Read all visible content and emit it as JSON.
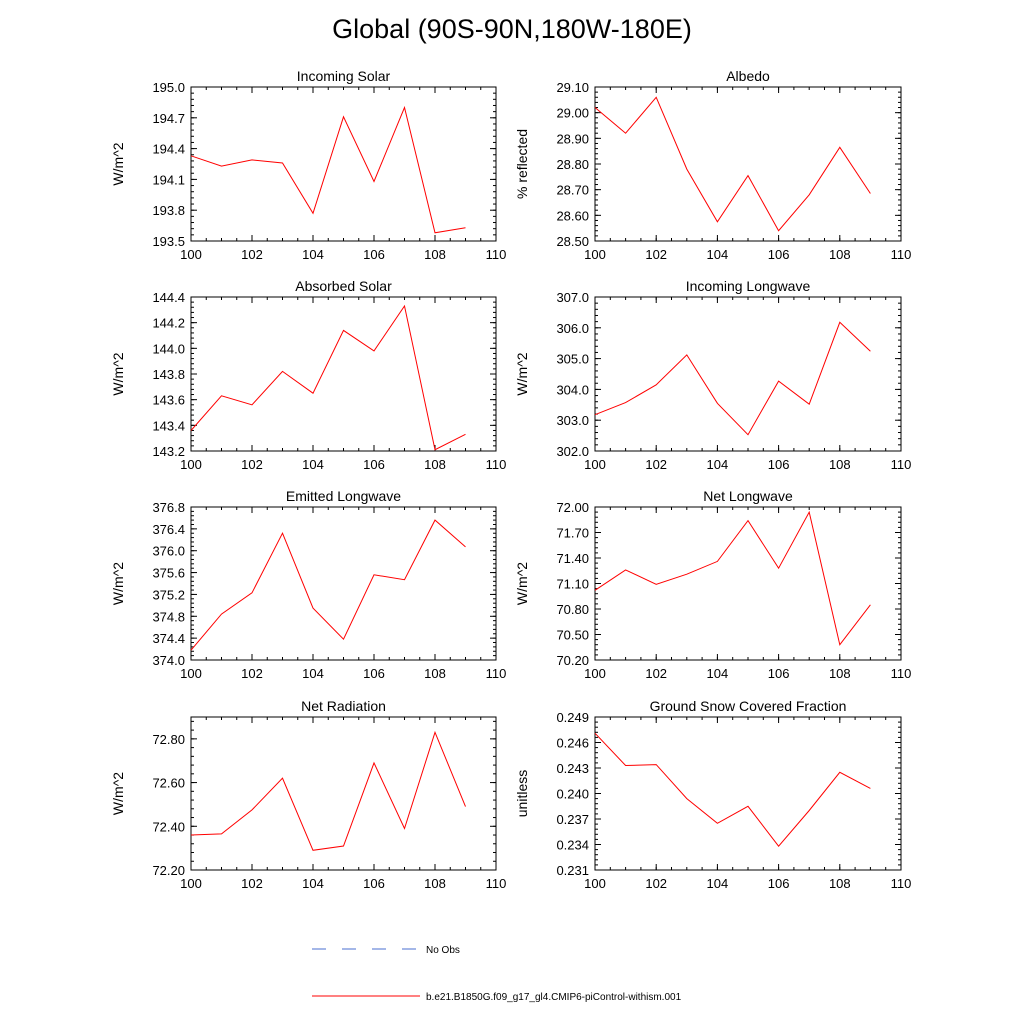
{
  "title": "Global (90S-90N,180W-180E)",
  "colors": {
    "model": "#ff0000",
    "obs": "#4a6fd0",
    "axis": "#000000"
  },
  "legend": {
    "obs_label": "No Obs",
    "model_label": "b.e21.B1850G.f09_g17_gl4.CMIP6-piControl-withism.001"
  },
  "chart_data": [
    {
      "type": "line",
      "title": "Incoming Solar",
      "ylabel": "W/m^2",
      "xlim": [
        100,
        110
      ],
      "xticks": [
        "100",
        "102",
        "104",
        "106",
        "108",
        "110"
      ],
      "ylim": [
        193.5,
        195.0
      ],
      "yticks": [
        "193.5",
        "193.8",
        "194.1",
        "194.4",
        "194.7",
        "195.0"
      ],
      "x": [
        100,
        101,
        102,
        103,
        104,
        105,
        106,
        107,
        108,
        109
      ],
      "series": [
        {
          "name": "b.e21.B1850G.f09_g17_gl4.CMIP6-piControl-withism.001",
          "values": [
            194.33,
            194.23,
            194.29,
            194.26,
            193.77,
            194.71,
            194.08,
            194.8,
            193.58,
            193.63
          ]
        }
      ]
    },
    {
      "type": "line",
      "title": "Albedo",
      "ylabel": "% reflected",
      "xlim": [
        100,
        110
      ],
      "xticks": [
        "100",
        "102",
        "104",
        "106",
        "108",
        "110"
      ],
      "ylim": [
        28.5,
        29.1
      ],
      "yticks": [
        "28.50",
        "28.60",
        "28.70",
        "28.80",
        "28.90",
        "29.00",
        "29.10"
      ],
      "x": [
        100,
        101,
        102,
        103,
        104,
        105,
        106,
        107,
        108,
        109
      ],
      "series": [
        {
          "name": "b.e21.B1850G.f09_g17_gl4.CMIP6-piControl-withism.001",
          "values": [
            29.02,
            28.92,
            29.06,
            28.78,
            28.575,
            28.755,
            28.54,
            28.68,
            28.865,
            28.685
          ]
        }
      ]
    },
    {
      "type": "line",
      "title": "Absorbed Solar",
      "ylabel": "W/m^2",
      "xlim": [
        100,
        110
      ],
      "xticks": [
        "100",
        "102",
        "104",
        "106",
        "108",
        "110"
      ],
      "ylim": [
        143.2,
        144.4
      ],
      "yticks": [
        "143.2",
        "143.4",
        "143.6",
        "143.8",
        "144.0",
        "144.2",
        "144.4"
      ],
      "x": [
        100,
        101,
        102,
        103,
        104,
        105,
        106,
        107,
        108,
        109
      ],
      "series": [
        {
          "name": "b.e21.B1850G.f09_g17_gl4.CMIP6-piControl-withism.001",
          "values": [
            143.36,
            143.63,
            143.56,
            143.82,
            143.65,
            144.14,
            143.98,
            144.33,
            143.21,
            143.33
          ]
        }
      ]
    },
    {
      "type": "line",
      "title": "Incoming Longwave",
      "ylabel": "W/m^2",
      "xlim": [
        100,
        110
      ],
      "xticks": [
        "100",
        "102",
        "104",
        "106",
        "108",
        "110"
      ],
      "ylim": [
        302.0,
        307.0
      ],
      "yticks": [
        "302.0",
        "303.0",
        "304.0",
        "305.0",
        "306.0",
        "307.0"
      ],
      "x": [
        100,
        101,
        102,
        103,
        104,
        105,
        106,
        107,
        108,
        109
      ],
      "series": [
        {
          "name": "b.e21.B1850G.f09_g17_gl4.CMIP6-piControl-withism.001",
          "values": [
            303.18,
            303.57,
            304.15,
            305.12,
            303.55,
            302.53,
            304.27,
            303.52,
            306.18,
            305.24
          ]
        }
      ]
    },
    {
      "type": "line",
      "title": "Emitted Longwave",
      "ylabel": "W/m^2",
      "xlim": [
        100,
        110
      ],
      "xticks": [
        "100",
        "102",
        "104",
        "106",
        "108",
        "110"
      ],
      "ylim": [
        374.0,
        376.8
      ],
      "yticks": [
        "374.0",
        "374.4",
        "374.8",
        "375.2",
        "375.6",
        "376.0",
        "376.4",
        "376.8"
      ],
      "x": [
        100,
        101,
        102,
        103,
        104,
        105,
        106,
        107,
        108,
        109
      ],
      "series": [
        {
          "name": "b.e21.B1850G.f09_g17_gl4.CMIP6-piControl-withism.001",
          "values": [
            374.18,
            374.84,
            375.23,
            376.32,
            374.95,
            374.38,
            375.56,
            375.47,
            376.56,
            376.07
          ]
        }
      ]
    },
    {
      "type": "line",
      "title": "Net Longwave",
      "ylabel": "W/m^2",
      "xlim": [
        100,
        110
      ],
      "xticks": [
        "100",
        "102",
        "104",
        "106",
        "108",
        "110"
      ],
      "ylim": [
        70.2,
        72.0
      ],
      "yticks": [
        "70.20",
        "70.50",
        "70.80",
        "71.10",
        "71.40",
        "71.70",
        "72.00"
      ],
      "x": [
        100,
        101,
        102,
        103,
        104,
        105,
        106,
        107,
        108,
        109
      ],
      "series": [
        {
          "name": "b.e21.B1850G.f09_g17_gl4.CMIP6-piControl-withism.001",
          "values": [
            71.02,
            71.26,
            71.09,
            71.21,
            71.36,
            71.84,
            71.28,
            71.94,
            70.38,
            70.85
          ]
        }
      ]
    },
    {
      "type": "line",
      "title": "Net Radiation",
      "ylabel": "W/m^2",
      "xlim": [
        100,
        110
      ],
      "xticks": [
        "100",
        "102",
        "104",
        "106",
        "108",
        "110"
      ],
      "ylim": [
        72.2,
        72.9
      ],
      "yticks": [
        "72.20",
        "72.40",
        "72.60",
        "72.80"
      ],
      "x": [
        100,
        101,
        102,
        103,
        104,
        105,
        106,
        107,
        108,
        109
      ],
      "series": [
        {
          "name": "b.e21.B1850G.f09_g17_gl4.CMIP6-piControl-withism.001",
          "values": [
            72.36,
            72.365,
            72.475,
            72.62,
            72.29,
            72.31,
            72.69,
            72.39,
            72.83,
            72.49
          ]
        }
      ]
    },
    {
      "type": "line",
      "title": "Ground Snow Covered Fraction",
      "ylabel": "unitless",
      "xlim": [
        100,
        110
      ],
      "xticks": [
        "100",
        "102",
        "104",
        "106",
        "108",
        "110"
      ],
      "ylim": [
        0.231,
        0.249
      ],
      "yticks": [
        "0.231",
        "0.234",
        "0.237",
        "0.240",
        "0.243",
        "0.246",
        "0.249"
      ],
      "x": [
        100,
        101,
        102,
        103,
        104,
        105,
        106,
        107,
        108,
        109
      ],
      "series": [
        {
          "name": "b.e21.B1850G.f09_g17_gl4.CMIP6-piControl-withism.001",
          "values": [
            0.2471,
            0.2433,
            0.2434,
            0.2394,
            0.2365,
            0.2385,
            0.2338,
            0.238,
            0.2425,
            0.2406
          ]
        }
      ]
    }
  ]
}
